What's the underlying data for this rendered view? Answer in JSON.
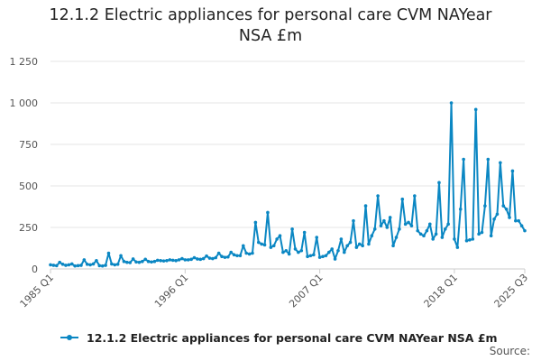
{
  "title_line1": "12.1.2 Electric appliances for personal care CVM NAYear",
  "title_line2": "NSA £m",
  "source_label": "Source:",
  "colors": {
    "series": "#0b87c3",
    "grid": "#e4e4e4",
    "axis": "#cccccc",
    "text": "#555555"
  },
  "chart_data": {
    "type": "line",
    "title": "12.1.2 Electric appliances for personal care CVM NAYear NSA £m",
    "xlabel": "",
    "ylabel": "",
    "ylim": [
      0,
      1250
    ],
    "yticks": [
      0,
      250,
      500,
      750,
      1000,
      1250
    ],
    "ytick_labels": [
      "0",
      "250",
      "500",
      "750",
      "1 000",
      "1 250"
    ],
    "xtick_labels": [
      "1985 Q1",
      "1996 Q1",
      "2007 Q1",
      "2018 Q1",
      "2025 Q3"
    ],
    "x_range": [
      "1985 Q1",
      "2025 Q3"
    ],
    "grid": true,
    "legend_position": "bottom",
    "series": [
      {
        "name": "12.1.2 Electric appliances for personal care CVM NAYear NSA £m",
        "x_start": "1985 Q1",
        "frequency": "quarterly",
        "values": [
          25,
          22,
          20,
          40,
          28,
          22,
          25,
          30,
          18,
          20,
          22,
          55,
          28,
          25,
          30,
          50,
          20,
          18,
          22,
          95,
          30,
          25,
          28,
          80,
          45,
          40,
          38,
          60,
          42,
          40,
          45,
          58,
          45,
          42,
          45,
          52,
          50,
          48,
          50,
          55,
          52,
          50,
          55,
          62,
          55,
          55,
          58,
          68,
          60,
          58,
          62,
          78,
          65,
          62,
          68,
          95,
          75,
          70,
          72,
          100,
          85,
          80,
          80,
          140,
          95,
          90,
          95,
          280,
          160,
          150,
          145,
          340,
          130,
          140,
          180,
          200,
          100,
          110,
          90,
          240,
          120,
          100,
          110,
          220,
          75,
          80,
          85,
          190,
          70,
          75,
          80,
          100,
          120,
          60,
          110,
          180,
          100,
          140,
          160,
          290,
          130,
          150,
          140,
          380,
          150,
          200,
          240,
          440,
          260,
          290,
          250,
          310,
          140,
          190,
          240,
          420,
          270,
          280,
          260,
          440,
          230,
          210,
          200,
          230,
          270,
          180,
          210,
          520,
          190,
          240,
          270,
          1000,
          180,
          130,
          360,
          660,
          170,
          175,
          180,
          960,
          210,
          220,
          380,
          660,
          200,
          300,
          330,
          640,
          380,
          360,
          310,
          590,
          290,
          290,
          260,
          230
        ]
      }
    ]
  }
}
